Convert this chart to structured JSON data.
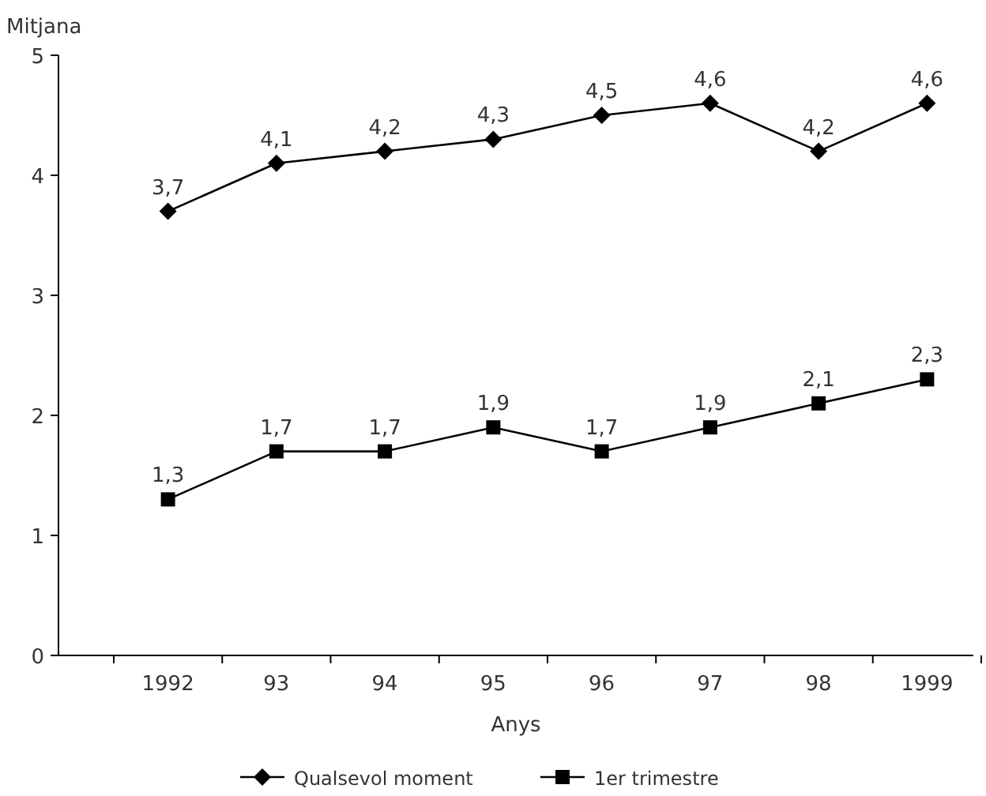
{
  "chart_data": {
    "type": "line",
    "ylabel": "Mitjana",
    "xlabel": "Anys",
    "categories": [
      "1992",
      "93",
      "94",
      "95",
      "96",
      "97",
      "98",
      "1999"
    ],
    "series": [
      {
        "name": "Qualsevol moment",
        "color": "#000000",
        "marker": "diamond",
        "values": [
          3.7,
          4.1,
          4.2,
          4.3,
          4.5,
          4.6,
          4.2,
          4.6
        ],
        "value_labels": [
          "3,7",
          "4,1",
          "4,2",
          "4,3",
          "4,5",
          "4,6",
          "4,2",
          "4,6"
        ]
      },
      {
        "name": "1er trimestre",
        "color": "#000000",
        "marker": "square",
        "values": [
          1.3,
          1.7,
          1.7,
          1.9,
          1.7,
          1.9,
          2.1,
          2.3
        ],
        "value_labels": [
          "1,3",
          "1,7",
          "1,7",
          "1,9",
          "1,7",
          "1,9",
          "2,1",
          "2,3"
        ]
      }
    ],
    "ylim": [
      0,
      5
    ],
    "yticks": [
      0,
      1,
      2,
      3,
      4,
      5
    ],
    "grid": false,
    "legend": "bottom",
    "line_style": "solid"
  }
}
